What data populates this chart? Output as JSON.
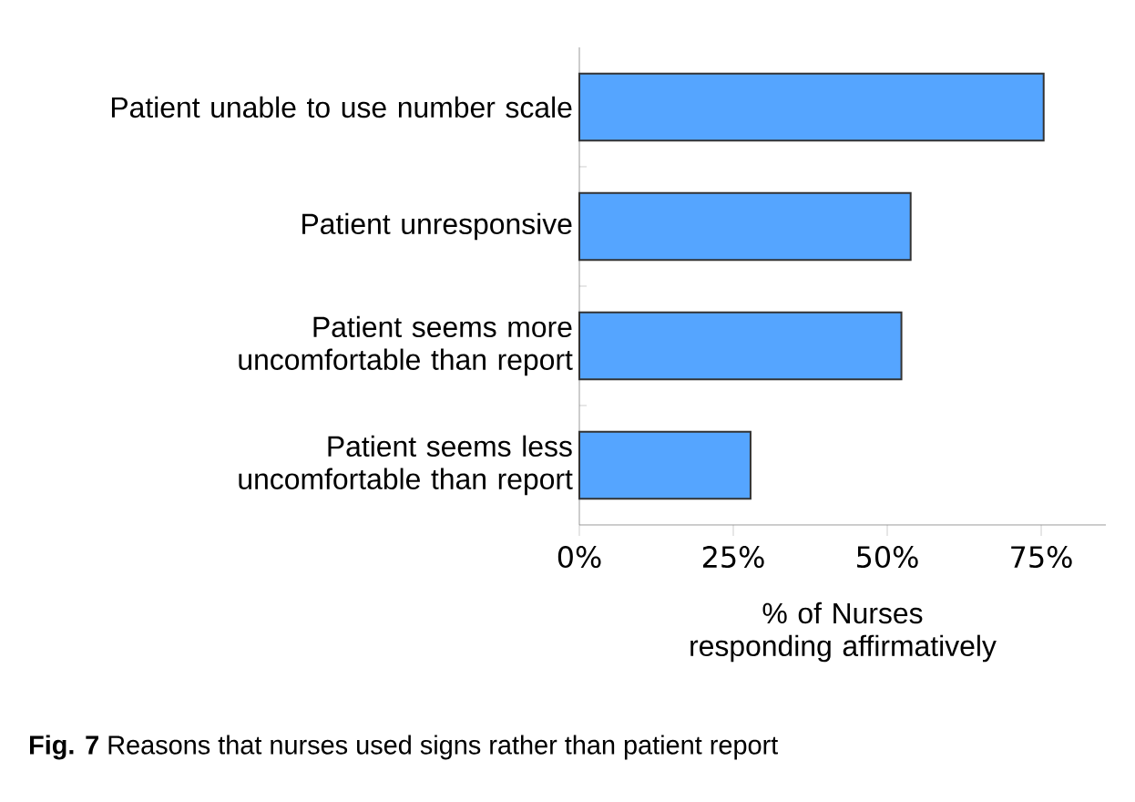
{
  "chart_data": {
    "type": "bar",
    "orientation": "horizontal",
    "categories": [
      "Patient unable to use number scale",
      "Patient unresponsive",
      "Patient seems more uncomfortable than report",
      "Patient seems less uncomfortable than report"
    ],
    "values": [
      75.4,
      53.8,
      52.3,
      27.8
    ],
    "color": "#55a5ff",
    "xlim": [
      0,
      85.5
    ],
    "xticks": [
      {
        "value": 0,
        "label": "0%"
      },
      {
        "value": 25,
        "label": "25%"
      },
      {
        "value": 50,
        "label": "50%"
      },
      {
        "value": 75,
        "label": "75%"
      }
    ],
    "xlabel": "% of Nurses responding affirmatively",
    "annotations": [
      "**Fig. 7** Reasons that nurses used signs rather than patient report"
    ]
  }
}
